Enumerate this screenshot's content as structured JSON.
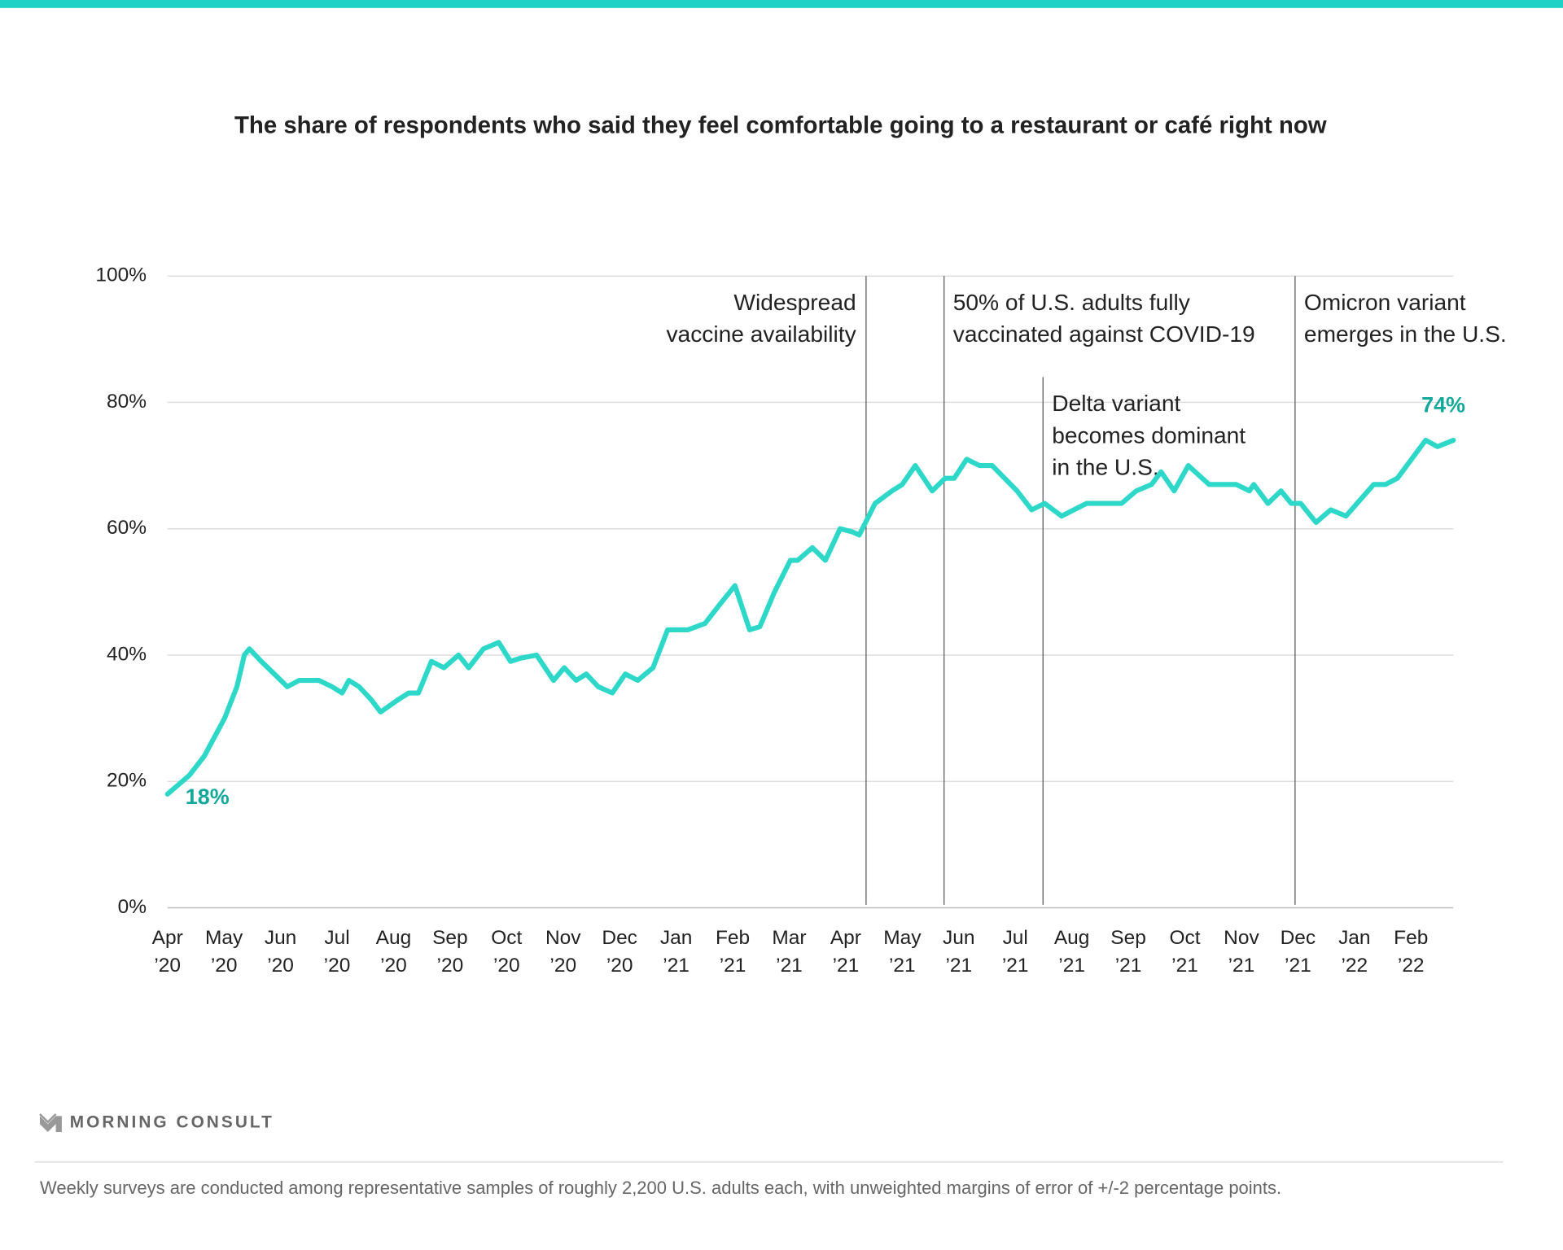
{
  "chart_data": {
    "type": "line",
    "title": "The share of respondents who said they feel comfortable going to a restaurant or café right now",
    "xlim": [
      0,
      22.75
    ],
    "xticks": [
      {
        "value": 0,
        "month": "Apr",
        "year": "’20"
      },
      {
        "value": 1,
        "month": "May",
        "year": "’20"
      },
      {
        "value": 2,
        "month": "Jun",
        "year": "’20"
      },
      {
        "value": 3,
        "month": "Jul",
        "year": "’20"
      },
      {
        "value": 4,
        "month": "Aug",
        "year": "’20"
      },
      {
        "value": 5,
        "month": "Sep",
        "year": "’20"
      },
      {
        "value": 6,
        "month": "Oct",
        "year": "’20"
      },
      {
        "value": 7,
        "month": "Nov",
        "year": "’20"
      },
      {
        "value": 8,
        "month": "Dec",
        "year": "’20"
      },
      {
        "value": 9,
        "month": "Jan",
        "year": "’21"
      },
      {
        "value": 10,
        "month": "Feb",
        "year": "’21"
      },
      {
        "value": 11,
        "month": "Mar",
        "year": "’21"
      },
      {
        "value": 12,
        "month": "Apr",
        "year": "’21"
      },
      {
        "value": 13,
        "month": "May",
        "year": "’21"
      },
      {
        "value": 14,
        "month": "Jun",
        "year": "’21"
      },
      {
        "value": 15,
        "month": "Jul",
        "year": "’21"
      },
      {
        "value": 16,
        "month": "Aug",
        "year": "’21"
      },
      {
        "value": 17,
        "month": "Sep",
        "year": "’21"
      },
      {
        "value": 18,
        "month": "Oct",
        "year": "’21"
      },
      {
        "value": 19,
        "month": "Nov",
        "year": "’21"
      },
      {
        "value": 20,
        "month": "Dec",
        "year": "’21"
      },
      {
        "value": 21,
        "month": "Jan",
        "year": "’22"
      },
      {
        "value": 22,
        "month": "Feb",
        "year": "’22"
      }
    ],
    "ylim": [
      0,
      100
    ],
    "yticks": [
      {
        "value": 0,
        "label": "0%"
      },
      {
        "value": 20,
        "label": "20%"
      },
      {
        "value": 40,
        "label": "40%"
      },
      {
        "value": 60,
        "label": "60%"
      },
      {
        "value": 80,
        "label": "80%"
      },
      {
        "value": 100,
        "label": "100%"
      }
    ],
    "grid": true,
    "x": [
      0,
      0.39,
      0.65,
      1.01,
      1.23,
      1.36,
      1.45,
      1.66,
      1.89,
      2.12,
      2.33,
      2.68,
      2.91,
      3.09,
      3.21,
      3.39,
      3.6,
      3.77,
      4.09,
      4.27,
      4.44,
      4.67,
      4.89,
      5.15,
      5.33,
      5.59,
      5.86,
      6.07,
      6.24,
      6.53,
      6.83,
      7.02,
      7.23,
      7.41,
      7.62,
      7.87,
      8.1,
      8.32,
      8.59,
      8.85,
      9.21,
      9.51,
      9.77,
      10.04,
      10.3,
      10.48,
      10.74,
      11.02,
      11.15,
      11.41,
      11.64,
      11.9,
      12.12,
      12.24,
      12.52,
      12.82,
      13.0,
      13.23,
      13.53,
      13.76,
      13.92,
      14.14,
      14.37,
      14.59,
      15.03,
      15.29,
      15.52,
      15.82,
      16.26,
      16.88,
      17.14,
      17.41,
      17.58,
      17.81,
      18.06,
      18.43,
      18.91,
      19.14,
      19.22,
      19.47,
      19.7,
      19.88,
      20.05,
      20.32,
      20.58,
      20.85,
      21.34,
      21.55,
      21.76,
      22.26,
      22.47,
      22.75
    ],
    "series": [
      {
        "color": "#2ed8c9",
        "label_color": "#14a89b",
        "values": [
          18,
          21,
          24,
          30,
          35,
          40,
          41,
          39,
          37,
          35,
          36,
          36,
          35,
          34,
          36,
          35,
          33,
          31,
          33,
          34,
          34,
          39,
          38,
          40,
          38,
          41,
          42,
          39,
          39.5,
          40,
          36,
          38,
          36,
          37,
          35,
          34,
          37,
          36,
          38,
          44,
          44,
          45,
          48,
          51,
          44,
          44.5,
          50,
          55,
          55,
          57,
          55,
          60,
          59.5,
          59,
          64,
          66,
          67,
          70,
          66,
          68,
          68,
          71,
          70,
          70,
          66,
          63,
          64,
          62,
          64,
          64,
          66,
          67,
          69,
          66,
          70,
          67,
          67,
          66,
          67,
          64,
          66,
          64,
          64,
          61,
          63,
          62,
          67,
          67,
          68,
          74,
          73,
          74
        ],
        "value_labels": [
          "18%",
          null,
          null,
          null,
          null,
          null,
          null,
          null,
          null,
          null,
          null,
          null,
          null,
          null,
          null,
          null,
          null,
          null,
          null,
          null,
          null,
          null,
          null,
          null,
          null,
          null,
          null,
          null,
          null,
          null,
          null,
          null,
          null,
          null,
          null,
          null,
          null,
          null,
          null,
          null,
          null,
          null,
          null,
          null,
          null,
          null,
          null,
          null,
          null,
          null,
          null,
          null,
          null,
          null,
          null,
          null,
          null,
          null,
          null,
          null,
          null,
          null,
          null,
          null,
          null,
          null,
          null,
          null,
          null,
          null,
          null,
          null,
          null,
          null,
          null,
          null,
          null,
          null,
          null,
          null,
          null,
          null,
          null,
          null,
          null,
          null,
          null,
          null,
          null,
          null,
          null,
          "74%"
        ]
      }
    ],
    "events": [
      {
        "x": 12.36,
        "lines": [
          "Widespread",
          "vaccine availability"
        ],
        "side": "left",
        "top": 100
      },
      {
        "x": 13.74,
        "lines": [
          "50% of U.S. adults fully",
          "vaccinated against COVID-19"
        ],
        "side": "right",
        "top": 100
      },
      {
        "x": 15.49,
        "lines": [
          "Delta variant",
          "becomes dominant",
          "in the U.S."
        ],
        "side": "right",
        "top": 84
      },
      {
        "x": 19.95,
        "lines": [
          "Omicron variant",
          "emerges in the U.S."
        ],
        "side": "right",
        "top": 100
      }
    ],
    "brand": "MORNING CONSULT",
    "note": "Weekly surveys are conducted among representative samples of roughly 2,200 U.S. adults each, with unweighted margins of error of +/-2 percentage points."
  }
}
